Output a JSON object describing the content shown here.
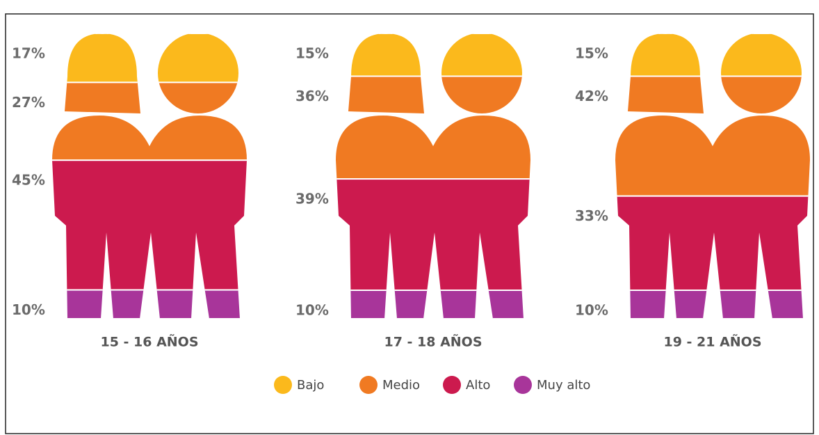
{
  "chart_data": {
    "type": "stacked-pictogram",
    "categories": [
      "15 - 16 AÑOS",
      "17 - 18 AÑOS",
      "19 - 21 AÑOS"
    ],
    "series": [
      {
        "name": "Bajo",
        "color": "#fbb91c",
        "values": [
          17,
          15,
          15
        ],
        "value_labels": [
          "17%",
          "15%",
          "15%"
        ]
      },
      {
        "name": "Medio",
        "color": "#f07a22",
        "values": [
          27,
          36,
          42
        ],
        "value_labels": [
          "27%",
          "36%",
          "42%"
        ]
      },
      {
        "name": "Alto",
        "color": "#cc1a4e",
        "values": [
          45,
          39,
          33
        ],
        "value_labels": [
          "45%",
          "39%",
          "33%"
        ]
      },
      {
        "name": "Muy alto",
        "color": "#a8359a",
        "values": [
          10,
          10,
          10
        ],
        "value_labels": [
          "10%",
          "10%",
          "10%"
        ]
      }
    ]
  }
}
